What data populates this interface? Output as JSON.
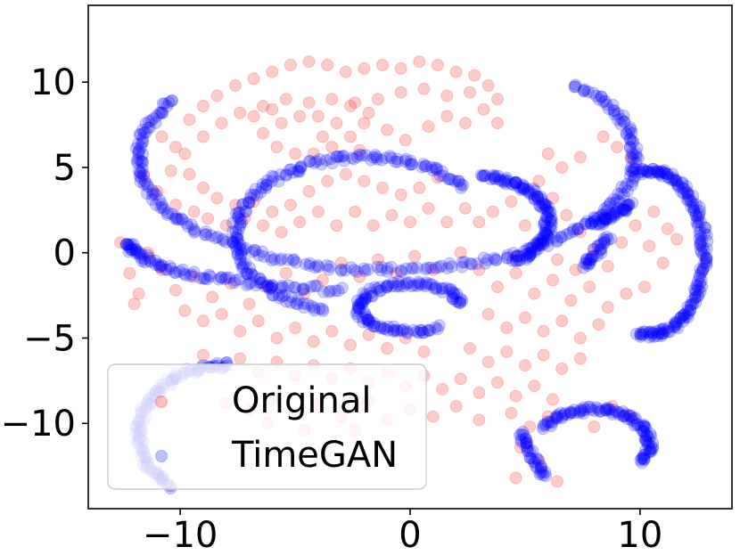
{
  "chart_data": {
    "type": "scatter",
    "title": "",
    "xlabel": "",
    "ylabel": "",
    "xlim": [
      -14,
      14
    ],
    "ylim": [
      -15,
      14.5
    ],
    "xticks": [
      {
        "value": -10,
        "label": "−10"
      },
      {
        "value": 0,
        "label": "0"
      },
      {
        "value": 10,
        "label": "10"
      }
    ],
    "yticks": [
      {
        "value": -10,
        "label": "−10"
      },
      {
        "value": -5,
        "label": "−5"
      },
      {
        "value": 0,
        "label": "0"
      },
      {
        "value": 5,
        "label": "5"
      },
      {
        "value": 10,
        "label": "10"
      }
    ],
    "grid": false,
    "legend": {
      "placement": "lower-left"
    },
    "series": [
      {
        "name": "Original",
        "color": "#ff0000",
        "alpha": 0.2,
        "points": [
          [
            -11.6,
            4.5
          ],
          [
            -10.8,
            6.8
          ],
          [
            -10.2,
            6.2
          ],
          [
            -9.6,
            7.8
          ],
          [
            -9.0,
            8.6
          ],
          [
            -8.4,
            9.2
          ],
          [
            -7.6,
            9.8
          ],
          [
            -6.8,
            10.2
          ],
          [
            -6.0,
            10.6
          ],
          [
            -5.2,
            11.0
          ],
          [
            -4.4,
            11.2
          ],
          [
            -3.6,
            11.0
          ],
          [
            -2.8,
            10.6
          ],
          [
            -2.0,
            10.8
          ],
          [
            -1.2,
            11.0
          ],
          [
            -0.4,
            10.8
          ],
          [
            0.4,
            11.2
          ],
          [
            1.2,
            11.0
          ],
          [
            2.0,
            10.6
          ],
          [
            2.8,
            10.4
          ],
          [
            3.4,
            9.8
          ],
          [
            3.8,
            9.0
          ],
          [
            2.6,
            9.4
          ],
          [
            1.6,
            9.2
          ],
          [
            0.6,
            9.6
          ],
          [
            -0.4,
            9.4
          ],
          [
            -1.4,
            9.0
          ],
          [
            -2.4,
            8.8
          ],
          [
            -3.4,
            9.0
          ],
          [
            -4.4,
            8.8
          ],
          [
            -5.4,
            9.0
          ],
          [
            -6.4,
            8.6
          ],
          [
            -7.4,
            8.2
          ],
          [
            -8.2,
            7.6
          ],
          [
            -9.0,
            6.8
          ],
          [
            -9.8,
            5.8
          ],
          [
            -10.4,
            4.8
          ],
          [
            -11.0,
            3.6
          ],
          [
            -6.4,
            7.0
          ],
          [
            -5.8,
            6.2
          ],
          [
            -5.0,
            5.8
          ],
          [
            -4.2,
            5.8
          ],
          [
            -3.4,
            6.2
          ],
          [
            -2.6,
            6.8
          ],
          [
            -2.0,
            7.6
          ],
          [
            -1.8,
            8.2
          ],
          [
            -5.6,
            7.6
          ],
          [
            -4.8,
            8.0
          ],
          [
            -4.0,
            8.0
          ],
          [
            -3.2,
            7.6
          ],
          [
            -2.6,
            8.6
          ],
          [
            -6.8,
            8.0
          ],
          [
            -6.0,
            8.4
          ],
          [
            -3.8,
            6.8
          ],
          [
            -2.2,
            6.0
          ],
          [
            -1.0,
            7.2
          ],
          [
            -0.2,
            6.6
          ],
          [
            0.8,
            7.4
          ],
          [
            1.6,
            8.0
          ],
          [
            2.4,
            7.6
          ],
          [
            3.2,
            8.4
          ],
          [
            3.8,
            7.6
          ],
          [
            -9.6,
            4.6
          ],
          [
            -9.0,
            3.8
          ],
          [
            -8.4,
            3.2
          ],
          [
            -7.6,
            2.8
          ],
          [
            -6.8,
            3.0
          ],
          [
            -6.0,
            2.4
          ],
          [
            -5.2,
            2.8
          ],
          [
            -4.4,
            3.6
          ],
          [
            -3.6,
            4.2
          ],
          [
            -2.8,
            4.6
          ],
          [
            -2.0,
            4.2
          ],
          [
            -1.2,
            3.8
          ],
          [
            -0.4,
            3.4
          ],
          [
            0.4,
            3.8
          ],
          [
            1.2,
            4.4
          ],
          [
            -8.8,
            2.0
          ],
          [
            -8.0,
            1.6
          ],
          [
            -7.2,
            2.0
          ],
          [
            -10.2,
            2.8
          ],
          [
            -9.4,
            2.4
          ],
          [
            -6.4,
            1.6
          ],
          [
            -5.6,
            1.2
          ],
          [
            -4.8,
            1.8
          ],
          [
            -4.0,
            2.4
          ],
          [
            -3.2,
            1.6
          ],
          [
            -2.4,
            2.4
          ],
          [
            -1.6,
            1.6
          ],
          [
            -0.8,
            2.2
          ],
          [
            0.0,
            1.8
          ],
          [
            0.8,
            2.6
          ],
          [
            1.6,
            1.8
          ],
          [
            2.4,
            2.6
          ],
          [
            3.0,
            1.8
          ],
          [
            -12.6,
            0.6
          ],
          [
            -12.2,
            -1.2
          ],
          [
            -11.8,
            -2.4
          ],
          [
            -12.0,
            -3.0
          ],
          [
            -11.4,
            0.0
          ],
          [
            -10.8,
            -1.0
          ],
          [
            -10.2,
            -2.2
          ],
          [
            -9.4,
            -1.4
          ],
          [
            -8.6,
            -2.6
          ],
          [
            -7.8,
            -1.8
          ],
          [
            -7.0,
            -3.0
          ],
          [
            -6.2,
            -2.0
          ],
          [
            -5.4,
            -1.2
          ],
          [
            -4.6,
            -2.4
          ],
          [
            -3.8,
            -1.6
          ],
          [
            -3.0,
            -0.6
          ],
          [
            -2.2,
            -1.4
          ],
          [
            -1.4,
            -0.4
          ],
          [
            -0.6,
            -1.2
          ],
          [
            0.2,
            -0.2
          ],
          [
            1.0,
            -1.0
          ],
          [
            -9.8,
            -3.4
          ],
          [
            -9.0,
            -4.0
          ],
          [
            -8.2,
            -3.6
          ],
          [
            -7.4,
            -4.6
          ],
          [
            -6.6,
            -4.0
          ],
          [
            -5.8,
            -5.0
          ],
          [
            -5.0,
            -4.4
          ],
          [
            -4.2,
            -5.2
          ],
          [
            -3.4,
            -4.6
          ],
          [
            -2.6,
            -5.4
          ],
          [
            -1.8,
            -4.8
          ],
          [
            -1.0,
            -5.6
          ],
          [
            -0.2,
            -5.0
          ],
          [
            0.6,
            -5.8
          ],
          [
            -9.0,
            -6.0
          ],
          [
            -8.2,
            -6.8
          ],
          [
            -7.4,
            -6.2
          ],
          [
            -6.6,
            -7.0
          ],
          [
            -5.8,
            -6.4
          ],
          [
            -5.0,
            -7.2
          ],
          [
            -4.2,
            -6.6
          ],
          [
            -3.4,
            -7.4
          ],
          [
            -2.6,
            -6.8
          ],
          [
            -1.8,
            -7.6
          ],
          [
            -1.0,
            -7.0
          ],
          [
            -0.2,
            -7.8
          ],
          [
            0.6,
            -7.2
          ],
          [
            1.4,
            -8.0
          ],
          [
            2.2,
            -7.4
          ],
          [
            3.0,
            -8.2
          ],
          [
            3.8,
            -7.6
          ],
          [
            4.6,
            -8.4
          ],
          [
            5.4,
            -7.8
          ],
          [
            6.2,
            -8.6
          ],
          [
            -8.0,
            -8.8
          ],
          [
            -7.0,
            -9.2
          ],
          [
            -6.0,
            -8.6
          ],
          [
            -5.0,
            -9.4
          ],
          [
            -4.0,
            -8.8
          ],
          [
            -3.0,
            -9.6
          ],
          [
            -2.0,
            -9.0
          ],
          [
            -1.0,
            -9.8
          ],
          [
            0.0,
            -9.2
          ],
          [
            1.0,
            -9.6
          ],
          [
            2.0,
            -9.0
          ],
          [
            3.0,
            -9.8
          ],
          [
            2.2,
            0.0
          ],
          [
            3.0,
            -1.0
          ],
          [
            3.8,
            -2.0
          ],
          [
            4.6,
            -1.2
          ],
          [
            5.4,
            -2.4
          ],
          [
            6.2,
            -1.6
          ],
          [
            7.0,
            -2.8
          ],
          [
            7.8,
            -2.0
          ],
          [
            8.6,
            -3.2
          ],
          [
            9.4,
            -2.4
          ],
          [
            3.4,
            -3.6
          ],
          [
            4.2,
            -4.4
          ],
          [
            5.0,
            -3.8
          ],
          [
            5.8,
            -4.6
          ],
          [
            6.6,
            -4.0
          ],
          [
            7.4,
            -5.0
          ],
          [
            8.2,
            -4.2
          ],
          [
            2.6,
            -5.6
          ],
          [
            3.4,
            -6.4
          ],
          [
            4.2,
            -5.8
          ],
          [
            5.0,
            -6.6
          ],
          [
            5.8,
            -6.0
          ],
          [
            6.6,
            -6.8
          ],
          [
            7.4,
            -6.2
          ],
          [
            4.4,
            -9.4
          ],
          [
            5.2,
            -10.2
          ],
          [
            6.0,
            -9.6
          ],
          [
            4.8,
            -11.4
          ],
          [
            5.6,
            -12.2
          ],
          [
            4.6,
            -13.2
          ],
          [
            6.4,
            -13.4
          ],
          [
            8.0,
            -10.2
          ],
          [
            8.8,
            -9.0
          ],
          [
            9.6,
            -9.6
          ],
          [
            5.6,
            4.2
          ],
          [
            6.2,
            3.2
          ],
          [
            6.8,
            2.2
          ],
          [
            7.4,
            1.2
          ],
          [
            8.0,
            0.2
          ],
          [
            8.6,
            -0.8
          ],
          [
            9.2,
            0.6
          ],
          [
            9.8,
            1.6
          ],
          [
            10.4,
            0.4
          ],
          [
            11.0,
            -0.6
          ],
          [
            11.6,
            0.8
          ],
          [
            8.4,
            6.8
          ],
          [
            9.0,
            6.2
          ],
          [
            9.6,
            5.6
          ],
          [
            6.0,
            5.8
          ],
          [
            6.6,
            5.0
          ],
          [
            7.4,
            5.6
          ],
          [
            10.6,
            2.4
          ],
          [
            11.2,
            1.4
          ],
          [
            6.4,
            -0.4
          ],
          [
            7.2,
            -1.0
          ],
          [
            10.2,
            -2.0
          ],
          [
            3.6,
            2.4
          ],
          [
            4.4,
            3.0
          ],
          [
            5.0,
            1.6
          ],
          [
            5.6,
            0.4
          ],
          [
            4.6,
            -0.2
          ],
          [
            -1.8,
            -8.6
          ],
          [
            -2.4,
            -10.4
          ],
          [
            -4.6,
            -10.4
          ],
          [
            -6.2,
            -10.0
          ]
        ]
      },
      {
        "name": "TimeGAN",
        "color": "#0000ff",
        "alpha": 0.2,
        "arcs": [
          {
            "type": "ellipse",
            "cx": -1.0,
            "cy": 5.6,
            "rx": 10.8,
            "ry": 6.6,
            "from": 150,
            "to": 400,
            "n": 90
          },
          {
            "type": "ellipse",
            "cx": -1.2,
            "cy": 0.6,
            "rx": 11.0,
            "ry": 2.8,
            "from": 180,
            "to": 260,
            "n": 30
          },
          {
            "type": "ellipse",
            "cx": -2.0,
            "cy": 1.0,
            "rx": 5.6,
            "ry": 4.6,
            "from": 40,
            "to": 250,
            "n": 55
          },
          {
            "type": "ellipse",
            "cx": 0.0,
            "cy": -3.2,
            "rx": 2.2,
            "ry": 1.4,
            "from": 10,
            "to": 300,
            "n": 40
          },
          {
            "type": "ellipse",
            "cx": 3.2,
            "cy": 1.8,
            "rx": 2.8,
            "ry": 2.6,
            "from": -60,
            "to": 90,
            "n": 40
          },
          {
            "type": "ellipse",
            "cx": 10.4,
            "cy": 0.0,
            "rx": 2.4,
            "ry": 4.8,
            "from": -100,
            "to": 100,
            "n": 60
          },
          {
            "type": "ellipse",
            "cx": 8.0,
            "cy": -11.2,
            "rx": 2.4,
            "ry": 2.0,
            "from": -30,
            "to": 150,
            "n": 35
          },
          {
            "type": "ellipse",
            "cx": -8.0,
            "cy": -10.6,
            "rx": 3.8,
            "ry": 4.0,
            "from": 90,
            "to": 230,
            "n": 35
          },
          {
            "type": "line",
            "x1": 8.0,
            "y1": 1.6,
            "x2": 9.6,
            "y2": 2.8,
            "n": 14
          },
          {
            "type": "line",
            "x1": 7.6,
            "y1": -0.8,
            "x2": 8.6,
            "y2": 0.8,
            "n": 10
          },
          {
            "type": "line",
            "x1": 4.8,
            "y1": -10.6,
            "x2": 5.8,
            "y2": -13.0,
            "n": 12
          }
        ]
      }
    ]
  }
}
